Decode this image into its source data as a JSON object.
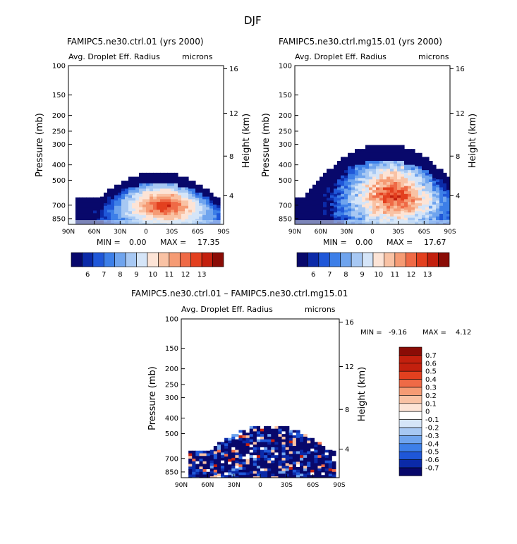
{
  "page_title": "DJF",
  "colors": {
    "blue_scale": [
      "#08086b",
      "#0b2aa8",
      "#1f57d8",
      "#3d7fe8",
      "#6fa4ee",
      "#a7c8f3",
      "#d5e5f8"
    ],
    "red_scale": [
      "#fde4d6",
      "#f9c2a4",
      "#f59b74",
      "#ef6a46",
      "#e3401f",
      "#c3200e",
      "#8a0c06"
    ],
    "light_cyan": "#dcecf9",
    "white": "#ffffff"
  },
  "chart_data": [
    {
      "type": "heatmap",
      "id": "left",
      "title": "FAMIPC5.ne30.ctrl.01 (yrs 2000)",
      "variable": "Avg. Droplet Eff. Radius",
      "units": "microns",
      "ylabel": "Pressure (mb)",
      "ylabel_right": "Height (km)",
      "xlabel": "",
      "x_ticks": [
        "90N",
        "60N",
        "30N",
        "0",
        "30S",
        "60S",
        "90S"
      ],
      "y_ticks": [
        "100",
        "150",
        "200",
        "250",
        "300",
        "400",
        "500",
        "700",
        "850"
      ],
      "y_ticks_right": [
        "16",
        "12",
        "8",
        "4"
      ],
      "min_label": "MIN =",
      "min_value": "0.00",
      "max_label": "MAX =",
      "max_value": "17.35",
      "colorbar": {
        "orientation": "horizontal",
        "labels": [
          "6",
          "7",
          "8",
          "9",
          "10",
          "11",
          "12",
          "13"
        ]
      }
    },
    {
      "type": "heatmap",
      "id": "right",
      "title": "FAMIPC5.ne30.ctrl.mg15.01 (yrs 2000)",
      "variable": "Avg. Droplet Eff. Radius",
      "units": "microns",
      "ylabel": "Pressure (mb)",
      "ylabel_right": "Height (km)",
      "xlabel": "",
      "x_ticks": [
        "90N",
        "60N",
        "30N",
        "0",
        "30S",
        "60S",
        "90S"
      ],
      "y_ticks": [
        "100",
        "150",
        "200",
        "250",
        "300",
        "400",
        "500",
        "700",
        "850"
      ],
      "y_ticks_right": [
        "16",
        "12",
        "8",
        "4"
      ],
      "min_label": "MIN =",
      "min_value": "0.00",
      "max_label": "MAX =",
      "max_value": "17.67",
      "colorbar": {
        "orientation": "horizontal",
        "labels": [
          "6",
          "7",
          "8",
          "9",
          "10",
          "11",
          "12",
          "13"
        ]
      }
    },
    {
      "type": "heatmap",
      "id": "diff",
      "title": "FAMIPC5.ne30.ctrl.01 – FAMIPC5.ne30.ctrl.mg15.01",
      "variable": "Avg. Droplet Eff. Radius",
      "units": "microns",
      "ylabel": "Pressure (mb)",
      "ylabel_right": "Height (km)",
      "xlabel": "",
      "x_ticks": [
        "90N",
        "60N",
        "30N",
        "0",
        "30S",
        "60S",
        "90S"
      ],
      "y_ticks": [
        "100",
        "150",
        "200",
        "250",
        "300",
        "400",
        "500",
        "700",
        "850"
      ],
      "y_ticks_right": [
        "16",
        "12",
        "8",
        "4"
      ],
      "min_label": "MIN =",
      "min_value": "-9.16",
      "max_label": "MAX =",
      "max_value": "4.12",
      "colorbar": {
        "orientation": "vertical",
        "labels": [
          "0.7",
          "0.6",
          "0.5",
          "0.4",
          "0.3",
          "0.2",
          "0.1",
          "0",
          "-0.1",
          "-0.2",
          "-0.3",
          "-0.4",
          "-0.5",
          "-0.6",
          "-0.7"
        ]
      }
    }
  ]
}
